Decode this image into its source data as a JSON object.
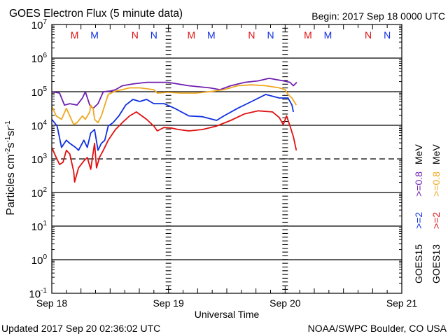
{
  "chart_data": {
    "type": "line",
    "title": "GOES Electron Flux (5 minute data)",
    "begin": "Begin: 2017 Sep 18 0000 UTC",
    "xlabel": "Universal Time",
    "ylabel_parts": [
      "Particles cm",
      "-2",
      "s",
      "-1",
      "sr",
      "-1"
    ],
    "x_unit": "hours since 2017 Sep 18 0000 UTC",
    "xlim": [
      0,
      72
    ],
    "x_ticks": [
      {
        "hour": 0,
        "label": "Sep 18"
      },
      {
        "hour": 24,
        "label": "Sep 19"
      },
      {
        "hour": 48,
        "label": "Sep 20"
      },
      {
        "hour": 72,
        "label": "Sep 21"
      }
    ],
    "y_scale": "log",
    "ylim": [
      0.1,
      10000000
    ],
    "y_ticks": [
      {
        "exp": "7"
      },
      {
        "exp": "6"
      },
      {
        "exp": "5"
      },
      {
        "exp": "4"
      },
      {
        "exp": "3"
      },
      {
        "exp": "2"
      },
      {
        "exp": "1"
      },
      {
        "exp": "0"
      },
      {
        "exp": "-1"
      }
    ],
    "y_tick_base": "10",
    "reference_lines": [
      {
        "value": 1000,
        "style": "dashed"
      }
    ],
    "grid": true,
    "markers": [
      {
        "label": "M",
        "satellite": "GOES13",
        "hour": 4.7
      },
      {
        "label": "M",
        "satellite": "GOES15",
        "hour": 8.8
      },
      {
        "label": "N",
        "satellite": "GOES13",
        "hour": 17.1
      },
      {
        "label": "N",
        "satellite": "GOES15",
        "hour": 21.0
      },
      {
        "label": "M",
        "satellite": "GOES13",
        "hour": 28.7
      },
      {
        "label": "M",
        "satellite": "GOES15",
        "hour": 32.8
      },
      {
        "label": "N",
        "satellite": "GOES13",
        "hour": 41.1
      },
      {
        "label": "N",
        "satellite": "GOES15",
        "hour": 45.0
      },
      {
        "label": "M",
        "satellite": "GOES13",
        "hour": 52.7
      },
      {
        "label": "M",
        "satellite": "GOES15",
        "hour": 56.8
      },
      {
        "label": "N",
        "satellite": "GOES13",
        "hour": 65.1
      },
      {
        "label": "N",
        "satellite": "GOES15",
        "hour": 69.0
      }
    ],
    "legend_placement": "right",
    "legend": [
      {
        "satellite": "GOES15",
        "channel": ">=2",
        "channel2": ">=0.8",
        "unit": "MeV"
      },
      {
        "satellite": "GOES13",
        "channel": ">=2",
        "channel2": ">=0.8",
        "unit": "MeV"
      }
    ],
    "series": [
      {
        "name": "GOES15 >=0.8 MeV",
        "color": "#7020b0",
        "points": [
          [
            0,
            100000.0
          ],
          [
            1.6,
            91000.0
          ],
          [
            2.6,
            40000.0
          ],
          [
            3.7,
            44000.0
          ],
          [
            5.2,
            40000.0
          ],
          [
            6.3,
            65000.0
          ],
          [
            6.9,
            100000.0
          ],
          [
            7.8,
            40000.0
          ],
          [
            8.5,
            32000.0
          ],
          [
            9.5,
            44000.0
          ],
          [
            10.6,
            100000.0
          ],
          [
            12.1,
            105000.0
          ],
          [
            13.1,
            115000.0
          ],
          [
            14.5,
            150000.0
          ],
          [
            16.7,
            170000.0
          ],
          [
            19.5,
            190000.0
          ],
          [
            23.9,
            190000.0
          ],
          [
            28.2,
            150000.0
          ],
          [
            32.5,
            130000.0
          ],
          [
            34.6,
            115000.0
          ],
          [
            36.8,
            150000.0
          ],
          [
            39.7,
            190000.0
          ],
          [
            42.5,
            210000.0
          ],
          [
            44.7,
            250000.0
          ],
          [
            47.6,
            210000.0
          ],
          [
            49.0,
            190000.0
          ],
          [
            49.7,
            150000.0
          ],
          [
            50.4,
            190000.0
          ]
        ]
      },
      {
        "name": "GOES13 >=0.8 MeV",
        "color": "#f0a820",
        "points": [
          [
            0,
            37000.0
          ],
          [
            0.9,
            19000.0
          ],
          [
            2.0,
            15000.0
          ],
          [
            3.0,
            32000.0
          ],
          [
            3.7,
            19000.0
          ],
          [
            4.5,
            10500.0
          ],
          [
            5.2,
            12000.0
          ],
          [
            6.3,
            19000.0
          ],
          [
            6.9,
            15000.0
          ],
          [
            7.8,
            25000.0
          ],
          [
            8.0,
            40000.0
          ],
          [
            8.5,
            32000.0
          ],
          [
            8.8,
            15000.0
          ],
          [
            9.5,
            12000.0
          ],
          [
            10.2,
            19000.0
          ],
          [
            10.9,
            40000.0
          ],
          [
            11.6,
            83000.0
          ],
          [
            13.1,
            105000.0
          ],
          [
            14.5,
            115000.0
          ],
          [
            16.0,
            130000.0
          ],
          [
            18.1,
            130000.0
          ],
          [
            21.0,
            115000.0
          ],
          [
            21.7,
            91000.0
          ],
          [
            23.9,
            96000.0
          ],
          [
            26.7,
            91000.0
          ],
          [
            29.6,
            91000.0
          ],
          [
            32.5,
            100000.0
          ],
          [
            35.4,
            115000.0
          ],
          [
            38.2,
            150000.0
          ],
          [
            41.1,
            160000.0
          ],
          [
            44.0,
            150000.0
          ],
          [
            46.8,
            130000.0
          ],
          [
            48.0,
            115000.0
          ],
          [
            48.6,
            83000.0
          ],
          [
            49.4,
            65000.0
          ],
          [
            50.3,
            40000.0
          ]
        ]
      },
      {
        "name": "GOES15 >=2 MeV",
        "color": "#1030e0",
        "points": [
          [
            0,
            15000.0
          ],
          [
            1.1,
            9500.0
          ],
          [
            2.0,
            2200.0
          ],
          [
            3.0,
            3600.0
          ],
          [
            3.7,
            2900.0
          ],
          [
            4.9,
            2200.0
          ],
          [
            5.5,
            1800.0
          ],
          [
            6.6,
            3600.0
          ],
          [
            7.3,
            2200.0
          ],
          [
            8.0,
            5900.0
          ],
          [
            8.8,
            7500.0
          ],
          [
            9.5,
            1800.0
          ],
          [
            10.2,
            2900.0
          ],
          [
            10.9,
            3600.0
          ],
          [
            11.6,
            9500.0
          ],
          [
            12.6,
            12000.0
          ],
          [
            13.8,
            19000.0
          ],
          [
            15.2,
            40000.0
          ],
          [
            16.7,
            59000.0
          ],
          [
            18.1,
            51000.0
          ],
          [
            19.5,
            59000.0
          ],
          [
            21.0,
            44000.0
          ],
          [
            23.1,
            44000.0
          ],
          [
            25.3,
            32000.0
          ],
          [
            28.2,
            19000.0
          ],
          [
            31.0,
            18000.0
          ],
          [
            33.9,
            14000.0
          ],
          [
            35.4,
            19000.0
          ],
          [
            38.2,
            32000.0
          ],
          [
            41.1,
            51000.0
          ],
          [
            44.0,
            83000.0
          ],
          [
            46.8,
            65000.0
          ],
          [
            48.6,
            65000.0
          ],
          [
            49.4,
            40000.0
          ],
          [
            49.7,
            25000.0
          ]
        ]
      },
      {
        "name": "GOES13 >=2 MeV",
        "color": "#e01010",
        "points": [
          [
            0,
            2200.0
          ],
          [
            0.9,
            1100.0
          ],
          [
            1.6,
            680
          ],
          [
            2.3,
            790
          ],
          [
            3.0,
            1800.0
          ],
          [
            3.7,
            1400.0
          ],
          [
            4.5,
            420
          ],
          [
            4.7,
            205
          ],
          [
            5.5,
            540
          ],
          [
            6.6,
            870
          ],
          [
            7.3,
            1100.0
          ],
          [
            8.0,
            490
          ],
          [
            8.8,
            2900.0
          ],
          [
            9.2,
            540
          ],
          [
            9.8,
            1100.0
          ],
          [
            10.6,
            1800.0
          ],
          [
            11.6,
            3600.0
          ],
          [
            13.1,
            7500.0
          ],
          [
            14.5,
            12000.0
          ],
          [
            16.0,
            19000.0
          ],
          [
            17.4,
            25000.0
          ],
          [
            19.5,
            15000.0
          ],
          [
            21.0,
            9500.0
          ],
          [
            21.7,
            6800.0
          ],
          [
            23.1,
            8600.0
          ],
          [
            24.6,
            8300.0
          ],
          [
            26.0,
            7500.0
          ],
          [
            28.2,
            6800.0
          ],
          [
            31.0,
            7500.0
          ],
          [
            33.9,
            9500.0
          ],
          [
            36.8,
            14000.0
          ],
          [
            39.7,
            22000.0
          ],
          [
            42.5,
            27000.0
          ],
          [
            45.4,
            25000.0
          ],
          [
            46.8,
            17000.0
          ],
          [
            47.6,
            10500.0
          ],
          [
            48.3,
            19000.0
          ],
          [
            49.0,
            9500.0
          ],
          [
            49.7,
            4600.0
          ],
          [
            50.3,
            1800.0
          ]
        ]
      }
    ]
  },
  "footer": {
    "updated": "Updated 2017 Sep 20 02:36:02 UTC",
    "source": "NOAA/SWPC Boulder, CO USA"
  }
}
